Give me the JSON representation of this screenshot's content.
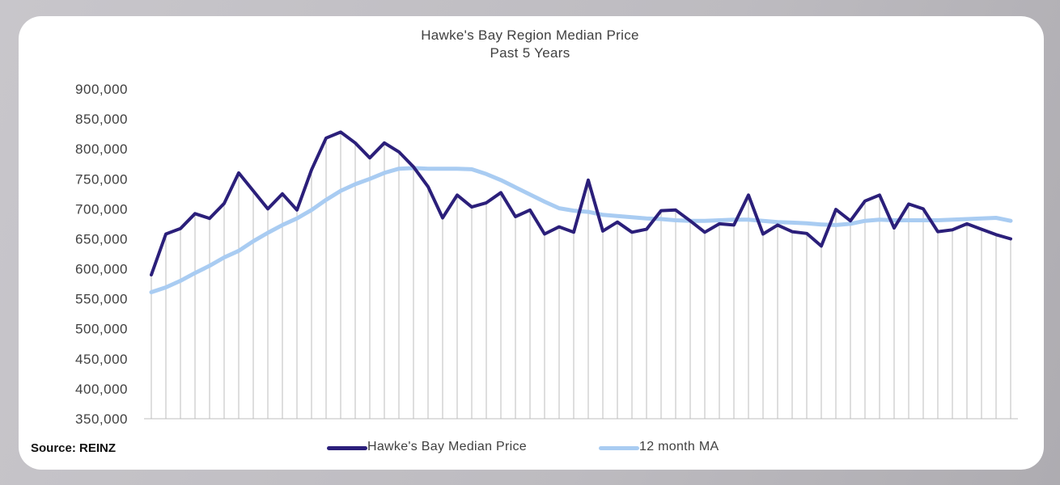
{
  "source": "Source: REINZ",
  "chart_data": {
    "type": "line",
    "title": "Hawke's Bay Region Median Price",
    "subtitle": "Past 5 Years",
    "xlabel": "",
    "ylabel": "",
    "ylim": [
      350000,
      900000
    ],
    "yticks": [
      350000,
      400000,
      450000,
      500000,
      550000,
      600000,
      650000,
      700000,
      750000,
      800000,
      850000,
      900000
    ],
    "ytick_labels": [
      "350,000",
      "400,000",
      "450,000",
      "500,000",
      "550,000",
      "600,000",
      "650,000",
      "700,000",
      "750,000",
      "800,000",
      "850,000",
      "900,000"
    ],
    "grid": "vertical lines at each month",
    "legend": "bottom-center",
    "colors": {
      "median": "#2b1f7a",
      "ma": "#a9ccf2",
      "grid": "#bdbdbd"
    },
    "series": [
      {
        "name": "Hawke's Bay Median Price",
        "values": [
          590000,
          658000,
          667000,
          692000,
          684000,
          709000,
          760000,
          730000,
          700000,
          725000,
          698000,
          765000,
          818000,
          828000,
          810000,
          785000,
          810000,
          795000,
          770000,
          737000,
          685000,
          723000,
          703000,
          710000,
          727000,
          687000,
          698000,
          658000,
          670000,
          661000,
          748000,
          663000,
          678000,
          661000,
          666000,
          697000,
          698000,
          680000,
          661000,
          675000,
          673000,
          723000,
          658000,
          673000,
          662000,
          659000,
          638000,
          699000,
          680000,
          713000,
          723000,
          668000,
          708000,
          700000,
          662000,
          665000,
          675000,
          666000,
          657000,
          650000
        ]
      },
      {
        "name": "12 month MA",
        "values": [
          561000,
          569000,
          580000,
          593000,
          605000,
          619000,
          630000,
          646000,
          660000,
          673000,
          684000,
          698000,
          715000,
          730000,
          741000,
          750000,
          760000,
          767000,
          768000,
          767000,
          767000,
          767000,
          766000,
          758000,
          748000,
          736000,
          724000,
          712000,
          701000,
          697000,
          695000,
          690000,
          688000,
          686000,
          684000,
          683000,
          681000,
          680000,
          680000,
          681000,
          682000,
          682000,
          680000,
          678000,
          677000,
          676000,
          674000,
          673000,
          675000,
          680000,
          682000,
          681000,
          681000,
          681000,
          681000,
          682000,
          683000,
          684000,
          685000,
          680000
        ]
      }
    ]
  }
}
